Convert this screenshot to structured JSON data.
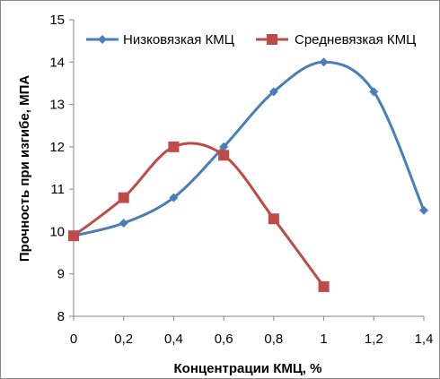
{
  "chart_data": {
    "type": "line",
    "title": "",
    "xlabel": "Концентрации КМЦ, %",
    "ylabel": "Прочность при изгибе, МПА",
    "xlim": [
      0,
      1.4
    ],
    "ylim": [
      8,
      15
    ],
    "x_ticks": [
      "0",
      "0,2",
      "0,4",
      "0,6",
      "0,8",
      "1",
      "1,2",
      "1,4"
    ],
    "y_ticks": [
      "8",
      "9",
      "10",
      "11",
      "12",
      "13",
      "14",
      "15"
    ],
    "grid": false,
    "legend_position": "top",
    "series": [
      {
        "name": "Низковязкая КМЦ",
        "color": "#4a7ebb",
        "marker": "diamond",
        "x": [
          0,
          0.2,
          0.4,
          0.6,
          0.8,
          1.0,
          1.2,
          1.4
        ],
        "y": [
          9.9,
          10.2,
          10.8,
          12.0,
          13.3,
          14.0,
          13.3,
          10.5
        ]
      },
      {
        "name": "Средневязкая КМЦ",
        "color": "#be4b48",
        "marker": "square",
        "x": [
          0,
          0.2,
          0.4,
          0.6,
          0.8,
          1.0
        ],
        "y": [
          9.9,
          10.8,
          12.0,
          11.8,
          10.3,
          8.7
        ]
      }
    ]
  }
}
